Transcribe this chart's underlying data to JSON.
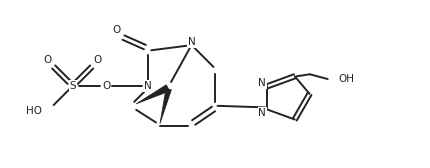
{
  "background_color": "#ffffff",
  "line_color": "#222222",
  "line_width": 1.4,
  "font_size": 7.5,
  "fig_width": 4.31,
  "fig_height": 1.68,
  "dpi": 100,
  "xlim": [
    0,
    10.5
  ],
  "ylim": [
    0,
    4.2
  ]
}
